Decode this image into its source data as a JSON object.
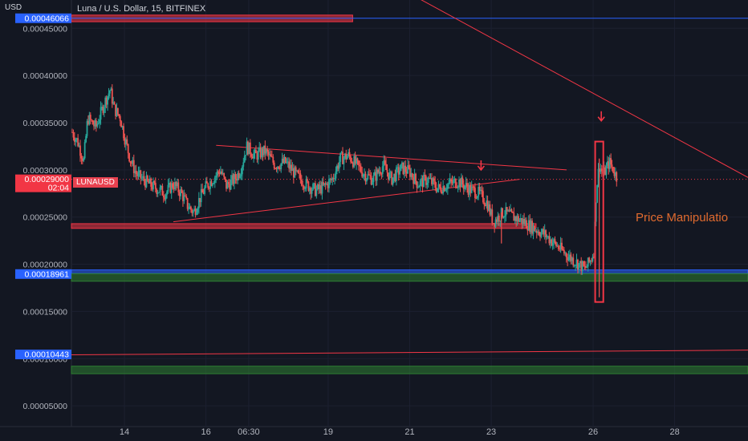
{
  "header": {
    "currency": "USD",
    "title": "Luna / U.S. Dollar, 15, BITFINEX",
    "symbol": "LUNAUSD"
  },
  "annotation_text": "Price Manipulatio",
  "colors": {
    "background": "#131722",
    "up": "#26a69a",
    "down": "#ef5350",
    "drawing": "#f23645",
    "zone_green": "#2e7d32",
    "label_blue": "#2962ff",
    "axis_text": "#b2b5be",
    "orange_text": "#e06a2e"
  },
  "price_labels": {
    "current": {
      "value": "0.00029000",
      "countdown": "02:04"
    },
    "support": "0.00018961",
    "low_line": "0.00010443",
    "top_line": "0.00046066"
  },
  "chart_data": {
    "type": "candlestick",
    "title": "Luna / U.S. Dollar, 15, BITFINEX",
    "xlabel": "",
    "ylabel": "USD",
    "ylim": [
      2.8e-05,
      0.00048
    ],
    "y_ticks": [
      "0.00005000",
      "0.00010000",
      "0.00015000",
      "0.00020000",
      "0.00025000",
      "0.00030000",
      "0.00035000",
      "0.00040000",
      "0.00045000"
    ],
    "x_range": [
      12.7,
      29.3
    ],
    "x_ticks": [
      {
        "label": "14",
        "x": 14
      },
      {
        "label": "16",
        "x": 16
      },
      {
        "label": "06:30",
        "x": 17.05
      },
      {
        "label": "19",
        "x": 19
      },
      {
        "label": "21",
        "x": 21
      },
      {
        "label": "23",
        "x": 23
      },
      {
        "label": "26",
        "x": 25.5
      },
      {
        "label": "28",
        "x": 27.5
      }
    ],
    "price_path": [
      [
        12.72,
        0.00034
      ],
      [
        12.85,
        0.00033
      ],
      [
        13.0,
        0.00031
      ],
      [
        13.1,
        0.000355
      ],
      [
        13.3,
        0.000345
      ],
      [
        13.5,
        0.00037
      ],
      [
        13.65,
        0.000385
      ],
      [
        13.75,
        0.000365
      ],
      [
        13.9,
        0.000355
      ],
      [
        14.0,
        0.000335
      ],
      [
        14.15,
        0.00031
      ],
      [
        14.3,
        0.000295
      ],
      [
        14.45,
        0.00029
      ],
      [
        14.6,
        0.000285
      ],
      [
        14.8,
        0.00028
      ],
      [
        15.0,
        0.000275
      ],
      [
        15.2,
        0.000285
      ],
      [
        15.4,
        0.000275
      ],
      [
        15.55,
        0.000262
      ],
      [
        15.7,
        0.000255
      ],
      [
        15.85,
        0.00027
      ],
      [
        16.0,
        0.000282
      ],
      [
        16.2,
        0.000292
      ],
      [
        16.35,
        0.0003
      ],
      [
        16.5,
        0.000283
      ],
      [
        16.7,
        0.00029
      ],
      [
        16.85,
        0.0003
      ],
      [
        17.0,
        0.000325
      ],
      [
        17.2,
        0.000315
      ],
      [
        17.45,
        0.00032
      ],
      [
        17.7,
        0.000305
      ],
      [
        17.95,
        0.000308
      ],
      [
        18.2,
        0.000295
      ],
      [
        18.45,
        0.000285
      ],
      [
        18.7,
        0.000278
      ],
      [
        18.9,
        0.000282
      ],
      [
        19.1,
        0.00029
      ],
      [
        19.3,
        0.000312
      ],
      [
        19.5,
        0.000315
      ],
      [
        19.7,
        0.000305
      ],
      [
        19.9,
        0.000295
      ],
      [
        20.1,
        0.00029
      ],
      [
        20.35,
        0.000305
      ],
      [
        20.55,
        0.00029
      ],
      [
        20.8,
        0.000302
      ],
      [
        21.0,
        0.000298
      ],
      [
        21.2,
        0.000285
      ],
      [
        21.45,
        0.00029
      ],
      [
        21.7,
        0.00028
      ],
      [
        21.95,
        0.000285
      ],
      [
        22.2,
        0.000288
      ],
      [
        22.45,
        0.00028
      ],
      [
        22.7,
        0.000275
      ],
      [
        22.9,
        0.000265
      ],
      [
        23.05,
        0.000245
      ],
      [
        23.3,
        0.000255
      ],
      [
        23.55,
        0.00025
      ],
      [
        23.8,
        0.000245
      ],
      [
        24.05,
        0.000238
      ],
      [
        24.3,
        0.000232
      ],
      [
        24.55,
        0.000222
      ],
      [
        24.8,
        0.000212
      ],
      [
        25.0,
        0.000205
      ],
      [
        25.15,
        0.0002
      ],
      [
        25.3,
        0.000195
      ],
      [
        25.45,
        0.000205
      ],
      [
        25.52,
        0.000215
      ],
      [
        25.58,
        0.00028
      ],
      [
        25.65,
        0.000305
      ],
      [
        25.75,
        0.000295
      ],
      [
        25.9,
        0.000308
      ],
      [
        26.0,
        0.0003
      ],
      [
        26.1,
        0.00029
      ]
    ],
    "spikes": [
      {
        "x": 23.25,
        "high": 0.000255,
        "low": 0.000222
      },
      {
        "x": 25.65,
        "high": 0.000312,
        "low": 0.000165
      }
    ],
    "drawings": {
      "horizontal_lines": [
        {
          "y": 0.00046066,
          "x_start": 12.7,
          "x_end": 29.3,
          "color": "#2962ff"
        },
        {
          "y": 0.00029,
          "x_start": 12.7,
          "x_end": 29.3,
          "color": "#f23645",
          "style": "dotted"
        }
      ],
      "zones": [
        {
          "y_top": 0.000464,
          "y_bottom": 0.000457,
          "x_start": 12.7,
          "x_end": 19.6,
          "color": "#f23645"
        },
        {
          "y_top": 0.000243,
          "y_bottom": 0.000238,
          "x_start": 12.7,
          "x_end": 24.1,
          "color": "#f23645"
        },
        {
          "y_top": 0.000194,
          "y_bottom": 0.00019,
          "x_start": 12.7,
          "x_end": 29.3,
          "color": "#2962ff"
        },
        {
          "y_top": 0.00019,
          "y_bottom": 0.000182,
          "x_start": 12.7,
          "x_end": 29.3,
          "color": "#2e7d32"
        },
        {
          "y_top": 9.2e-05,
          "y_bottom": 8.4e-05,
          "x_start": 12.7,
          "x_end": 29.3,
          "color": "#2e7d32"
        }
      ],
      "trend_lines": [
        {
          "x1": 19.8,
          "y1": 0.000515,
          "x2": 29.3,
          "y2": 0.000292
        },
        {
          "x1": 16.25,
          "y1": 0.000326,
          "x2": 24.85,
          "y2": 0.0003
        },
        {
          "x1": 15.2,
          "y1": 0.000245,
          "x2": 23.7,
          "y2": 0.00029
        },
        {
          "x1": 12.7,
          "y1": 0.000104,
          "x2": 29.3,
          "y2": 0.000109
        }
      ],
      "arrows": [
        {
          "x": 22.75,
          "y": 0.000305
        },
        {
          "x": 25.7,
          "y": 0.000357
        }
      ],
      "highlight_box": {
        "x_start": 25.55,
        "x_end": 25.75,
        "y_top": 0.00033,
        "y_bottom": 0.00016
      }
    }
  }
}
